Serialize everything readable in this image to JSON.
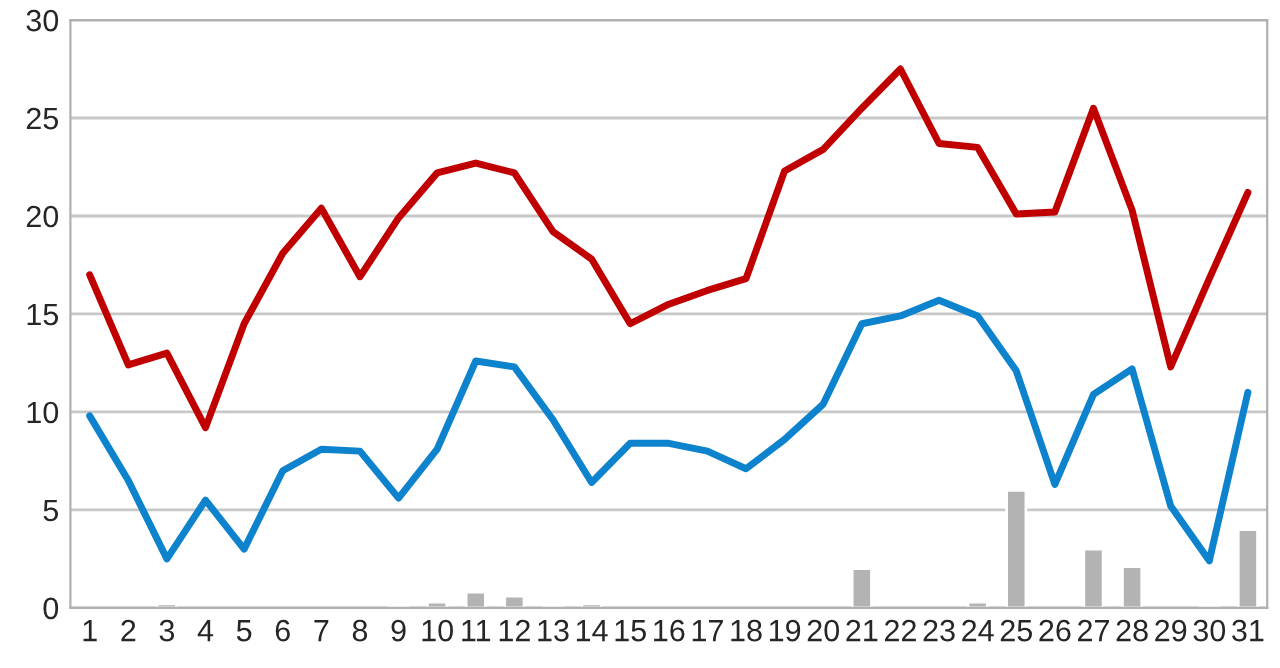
{
  "chart_data": {
    "type": "line",
    "categories": [
      "1",
      "2",
      "3",
      "4",
      "5",
      "6",
      "7",
      "8",
      "9",
      "10",
      "11",
      "12",
      "13",
      "14",
      "15",
      "16",
      "17",
      "18",
      "19",
      "20",
      "21",
      "22",
      "23",
      "24",
      "25",
      "26",
      "27",
      "28",
      "29",
      "30",
      "31"
    ],
    "series": [
      {
        "type": "bar",
        "color": "#b3b3b3",
        "values": [
          null,
          null,
          0.2,
          null,
          null,
          null,
          null,
          null,
          0.1,
          0.3,
          0.8,
          0.6,
          0.1,
          0.2,
          null,
          null,
          null,
          null,
          null,
          null,
          2,
          null,
          null,
          0.3,
          6,
          null,
          3,
          2.1,
          null,
          0.1,
          4
        ]
      },
      {
        "color": "#c00000",
        "values": [
          17,
          12.4,
          13,
          9.2,
          14.5,
          18.1,
          20.4,
          16.9,
          19.9,
          22.2,
          22.7,
          22.2,
          19.2,
          17.8,
          14.5,
          15.5,
          16.2,
          16.8,
          22.3,
          23.4,
          25.5,
          27.5,
          23.7,
          23.5,
          20.1,
          20.2,
          25.5,
          20.3,
          12.3,
          16.8,
          21.2
        ]
      },
      {
        "color": "#0e83cd",
        "values": [
          9.8,
          6.5,
          2.5,
          5.5,
          3,
          7,
          8.1,
          8,
          5.6,
          8.1,
          12.6,
          12.3,
          9.6,
          6.4,
          8.4,
          8.4,
          8,
          7.1,
          8.6,
          10.4,
          14.5,
          14.9,
          15.7,
          14.9,
          12.1,
          6.3,
          10.9,
          12.2,
          5.2,
          2.4,
          11
        ]
      }
    ],
    "ylim": [
      0,
      30
    ],
    "yticks": [
      0,
      5,
      10,
      15,
      20,
      25,
      30
    ],
    "grid": "y",
    "legend": false
  }
}
